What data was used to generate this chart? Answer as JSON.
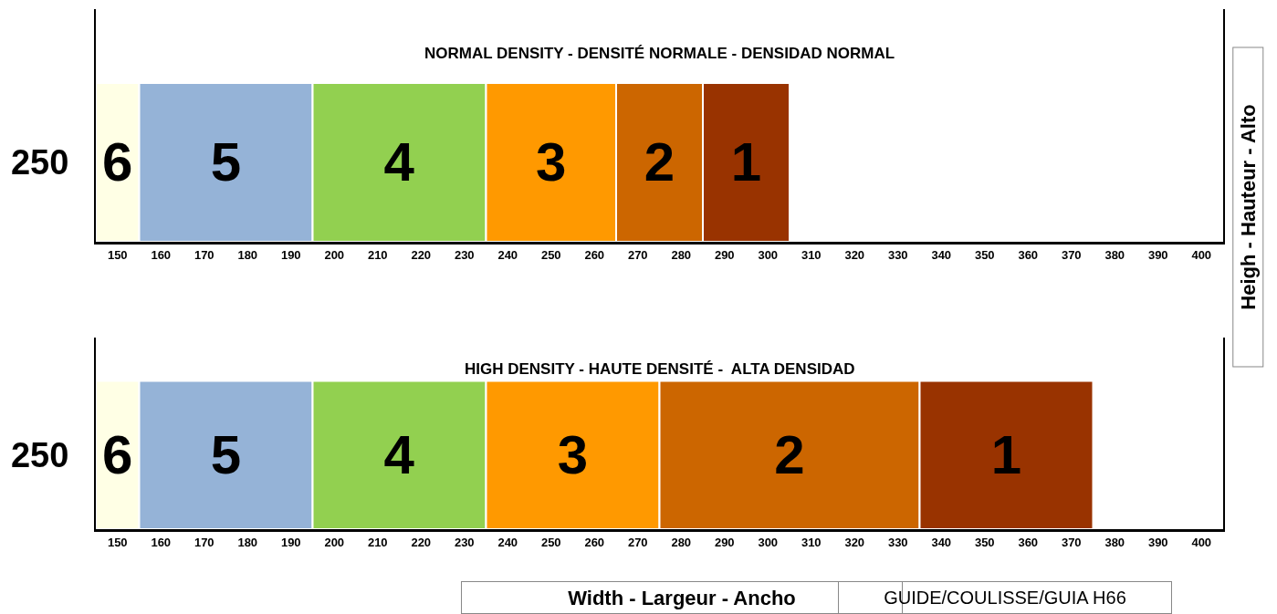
{
  "chart_data": [
    {
      "type": "bar",
      "orientation": "horizontal",
      "title": "NORMAL DENSITY - DENSITÉ NORMALE - DENSIDAD NORMAL",
      "categories": [
        "250"
      ],
      "xlim": [
        145,
        405
      ],
      "xticks": [
        150,
        160,
        170,
        180,
        190,
        200,
        210,
        220,
        230,
        240,
        250,
        260,
        270,
        280,
        290,
        300,
        310,
        320,
        330,
        340,
        350,
        360,
        370,
        380,
        390,
        400
      ],
      "series": [
        {
          "name": "6",
          "color": "#ffffe5",
          "base": [
            145
          ],
          "values": [
            10
          ]
        },
        {
          "name": "5",
          "color": "#95b3d7",
          "base": [
            155
          ],
          "values": [
            40
          ]
        },
        {
          "name": "4",
          "color": "#92d050",
          "base": [
            195
          ],
          "values": [
            40
          ]
        },
        {
          "name": "3",
          "color": "#ff9900",
          "base": [
            235
          ],
          "values": [
            30
          ]
        },
        {
          "name": "2",
          "color": "#cc6600",
          "base": [
            265
          ],
          "values": [
            20
          ]
        },
        {
          "name": "1",
          "color": "#993300",
          "base": [
            285
          ],
          "values": [
            20
          ]
        }
      ]
    },
    {
      "type": "bar",
      "orientation": "horizontal",
      "title": "HIGH DENSITY - HAUTE DENSITÉ -  ALTA DENSIDAD",
      "xlabel": "Width - Largeur - Ancho",
      "ylabel": "Heigh - Hauteur - Alto",
      "annotations": [
        "GUIDE/COULISSE/GUIA H66"
      ],
      "categories": [
        "250"
      ],
      "xlim": [
        145,
        405
      ],
      "xticks": [
        150,
        160,
        170,
        180,
        190,
        200,
        210,
        220,
        230,
        240,
        250,
        260,
        270,
        280,
        290,
        300,
        310,
        320,
        330,
        340,
        350,
        360,
        370,
        380,
        390,
        400
      ],
      "series": [
        {
          "name": "6",
          "color": "#ffffe5",
          "base": [
            145
          ],
          "values": [
            10
          ]
        },
        {
          "name": "5",
          "color": "#95b3d7",
          "base": [
            155
          ],
          "values": [
            40
          ]
        },
        {
          "name": "4",
          "color": "#92d050",
          "base": [
            195
          ],
          "values": [
            40
          ]
        },
        {
          "name": "3",
          "color": "#ff9900",
          "base": [
            235
          ],
          "values": [
            40
          ]
        },
        {
          "name": "2",
          "color": "#cc6600",
          "base": [
            275
          ],
          "values": [
            60
          ]
        },
        {
          "name": "1",
          "color": "#993300",
          "base": [
            335
          ],
          "values": [
            40
          ]
        }
      ]
    }
  ]
}
